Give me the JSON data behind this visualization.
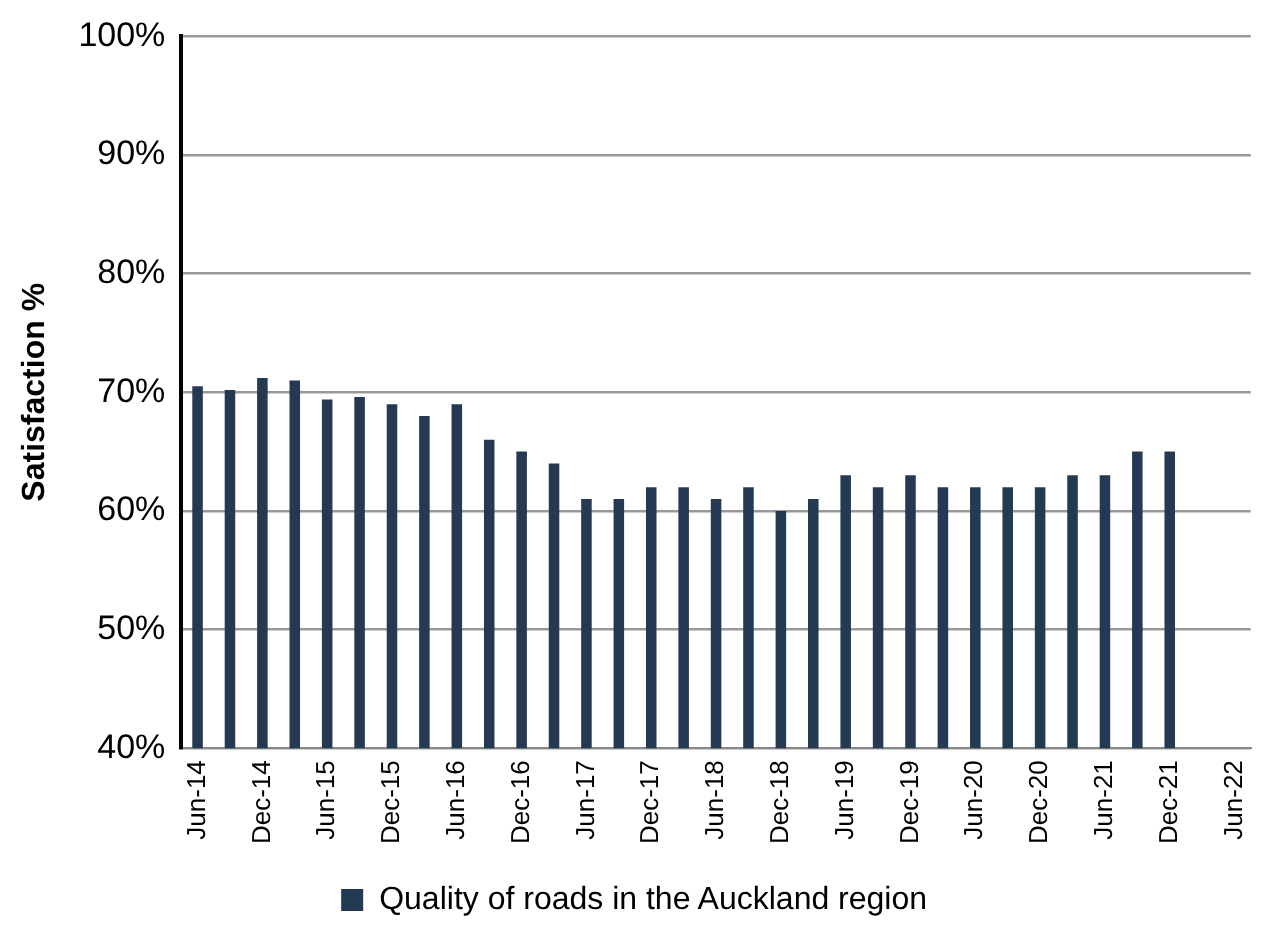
{
  "chart_data": {
    "type": "bar",
    "ylabel": "Satisfaction %",
    "categories": [
      "Jun-14",
      null,
      "Dec-14",
      null,
      "Jun-15",
      null,
      "Dec-15",
      null,
      "Jun-16",
      null,
      "Dec-16",
      null,
      "Jun-17",
      null,
      "Dec-17",
      null,
      "Jun-18",
      null,
      "Dec-18",
      null,
      "Jun-19",
      null,
      "Dec-19",
      null,
      "Jun-20",
      null,
      "Dec-20",
      null,
      "Jun-21",
      null,
      "Dec-21",
      null,
      "Jun-22"
    ],
    "series": [
      {
        "name": "Quality of roads in the Auckland region",
        "color": "#243a52",
        "values": [
          70.5,
          70.2,
          71.2,
          71,
          69.4,
          69.6,
          69,
          68,
          69,
          66,
          65,
          64,
          61,
          61,
          62,
          62,
          61,
          62,
          60,
          61,
          63,
          62,
          63,
          62,
          62,
          62,
          62,
          63,
          63,
          65,
          65,
          null,
          null
        ]
      }
    ],
    "ylim": [
      40,
      100
    ],
    "yticks": [
      {
        "value": 40,
        "label": "40%"
      },
      {
        "value": 50,
        "label": "50%"
      },
      {
        "value": 60,
        "label": "60%"
      },
      {
        "value": 70,
        "label": "70%"
      },
      {
        "value": 80,
        "label": "80%"
      },
      {
        "value": 90,
        "label": "90%"
      },
      {
        "value": 100,
        "label": "100%"
      }
    ],
    "grid": "y",
    "legend": "bottom"
  }
}
